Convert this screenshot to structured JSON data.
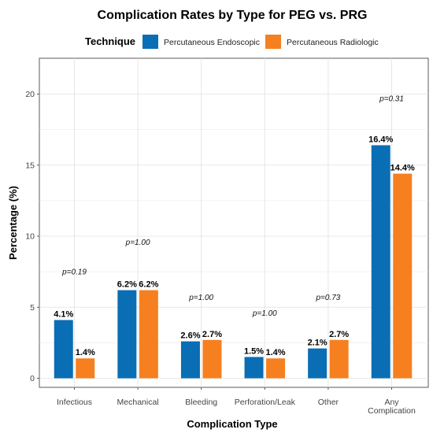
{
  "chart_data": {
    "type": "bar",
    "title": "Complication Rates by Type for PEG vs. PRG",
    "xlabel": "Complication Type",
    "ylabel": "Percentage (%)",
    "ylim": [
      0,
      22
    ],
    "yticks": [
      0,
      5,
      10,
      15,
      20
    ],
    "grid": true,
    "legend": {
      "title": "Technique",
      "placement": "top"
    },
    "categories": [
      "Infectious",
      "Mechanical",
      "Bleeding",
      "Perforation/Leak",
      "Other",
      "Any\nComplication"
    ],
    "series": [
      {
        "name": "Percutaneous Endoscopic",
        "color": "#0a6eb4",
        "values": [
          4.1,
          6.2,
          2.6,
          1.5,
          2.1,
          16.4
        ],
        "labels": [
          "4.1%",
          "6.2%",
          "2.6%",
          "1.5%",
          "2.1%",
          "16.4%"
        ]
      },
      {
        "name": "Percutaneous Radiologic",
        "color": "#f6801f",
        "values": [
          1.4,
          6.2,
          2.7,
          1.4,
          2.7,
          14.4
        ],
        "labels": [
          "1.4%",
          "6.2%",
          "2.7%",
          "1.4%",
          "2.7%",
          "14.4%"
        ]
      }
    ],
    "annotations": [
      {
        "category": 0,
        "text": "p=0.19",
        "y": 7.3
      },
      {
        "category": 1,
        "text": "p=1.00",
        "y": 9.4
      },
      {
        "category": 2,
        "text": "p=1.00",
        "y": 5.5
      },
      {
        "category": 3,
        "text": "p=1.00",
        "y": 4.4
      },
      {
        "category": 4,
        "text": "p=0.73",
        "y": 5.5
      },
      {
        "category": 5,
        "text": "p=0.31",
        "y": 19.5
      }
    ]
  }
}
